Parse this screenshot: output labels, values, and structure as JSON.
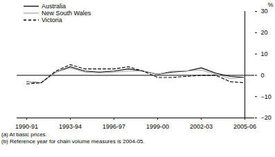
{
  "chart_data": {
    "type": "line",
    "y_label": "%",
    "categories": [
      "1990-91",
      null,
      null,
      "1993-94",
      null,
      null,
      "1996-97",
      null,
      null,
      "1999-00",
      null,
      null,
      "2002-03",
      null,
      null,
      "2005-06"
    ],
    "series": [
      {
        "name": "Australia",
        "color": "#000000",
        "line_style": "solid",
        "values": [
          -3,
          -3.5,
          1.5,
          4,
          2,
          1.5,
          2,
          3,
          2,
          0.5,
          1.5,
          2,
          3.5,
          1,
          -0.5,
          -1
        ]
      },
      {
        "name": "New South Wales",
        "color": "#a6a6a6",
        "line_style": "solid",
        "values": [
          -3,
          -3.5,
          1.5,
          3.5,
          1.5,
          1,
          1.5,
          2,
          2,
          0.5,
          2,
          2,
          2.5,
          0.5,
          -1.5,
          -1
        ]
      },
      {
        "name": "Victoria",
        "color": "#000000",
        "line_style": "dashed",
        "values": [
          -4,
          -3.5,
          2,
          5,
          3,
          3,
          3,
          4,
          2,
          -1,
          -1,
          -0.5,
          0,
          0,
          -3,
          -3.5
        ]
      }
    ],
    "ylim": [
      -20,
      30
    ],
    "yticks": [
      -20,
      -10,
      0,
      10,
      20,
      30
    ],
    "grid": false,
    "legend": "top-left",
    "notes": [
      "(a) At basic prices.",
      "(b) Reference year for chain volume measures is 2004-05."
    ]
  }
}
